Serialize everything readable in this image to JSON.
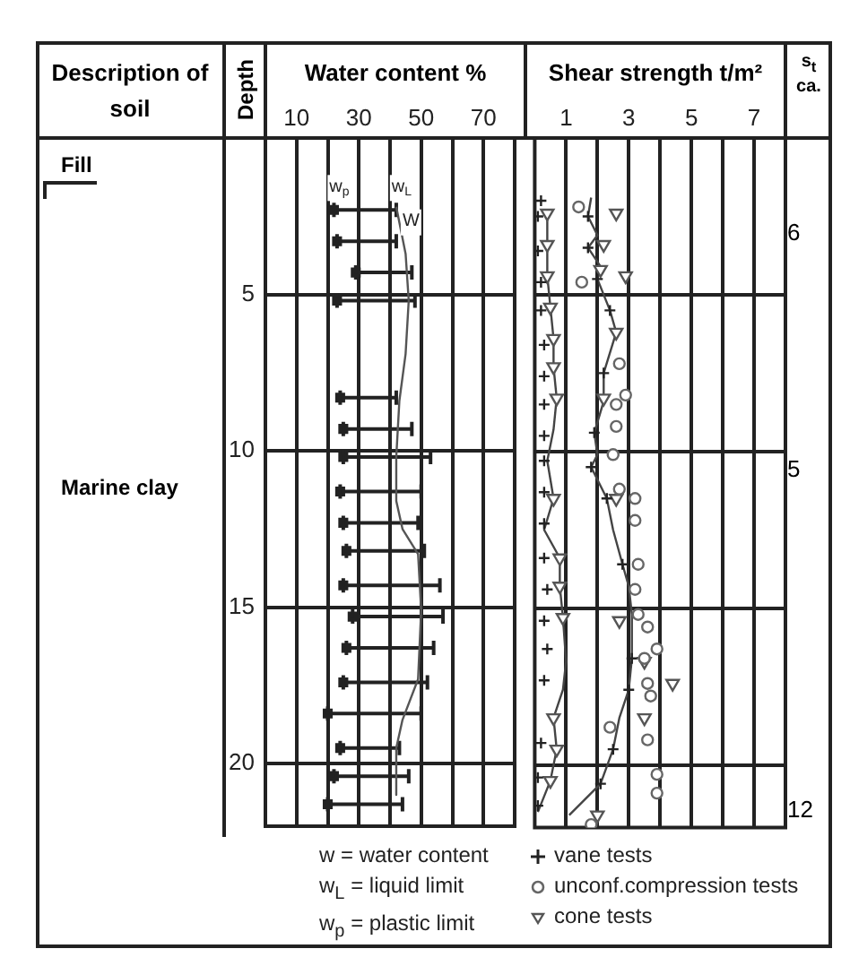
{
  "chart_data": [
    {
      "type": "scatter",
      "xlabel": "Water content %",
      "ylabel": "Depth",
      "xlim": [
        0,
        80
      ],
      "xticks": [
        10,
        {
          "value": 20,
          "label": null
        },
        30,
        {
          "value": 40,
          "label": null
        },
        50,
        {
          "value": 60,
          "label": null
        },
        70
      ],
      "ylim": [
        22,
        0
      ],
      "yticks": [
        5,
        10,
        15,
        20
      ],
      "grid": true,
      "series": [
        {
          "type": "scatter",
          "marker": "square",
          "color": "#222222",
          "x": [
            22,
            23,
            29,
            23,
            24,
            25,
            25,
            24,
            25,
            26,
            25,
            28,
            26,
            25,
            20,
            24,
            22,
            20
          ],
          "values": [
            2.3,
            3.3,
            4.3,
            5.2,
            8.3,
            9.3,
            10.2,
            11.3,
            12.3,
            13.2,
            14.3,
            15.3,
            16.3,
            17.4,
            18.4,
            19.5,
            20.4,
            21.3
          ],
          "xerrors": [
            [
              22,
              42
            ],
            [
              23,
              42
            ],
            [
              29,
              47
            ],
            [
              23,
              48
            ],
            [
              24,
              42
            ],
            [
              25,
              47
            ],
            [
              25,
              53
            ],
            [
              24,
              50
            ],
            [
              25,
              49
            ],
            [
              26,
              51
            ],
            [
              25,
              56
            ],
            [
              28,
              57
            ],
            [
              26,
              54
            ],
            [
              25,
              52
            ],
            [
              20,
              50
            ],
            [
              24,
              43
            ],
            [
              22,
              46
            ],
            [
              20,
              44
            ]
          ]
        },
        {
          "type": "line",
          "marker": "none",
          "color": "#555555",
          "x": [
            42,
            45,
            46,
            45,
            43,
            42,
            42,
            44,
            49,
            50,
            49,
            44,
            42,
            42
          ],
          "values": [
            2.2,
            3.7,
            5.2,
            6.9,
            8.4,
            10.2,
            11.6,
            12.5,
            13.3,
            15.1,
            17.3,
            18.6,
            19.5,
            21
          ]
        }
      ],
      "annotations": [
        "Description of soil",
        "Fill",
        "Marine clay",
        "w = water content",
        "w$_{L}$ = liquid limit",
        "w$_{p}$ = plastic limit",
        {
          "text": "w$_{p}$",
          "x": 22,
          "y": 2.3
        },
        {
          "text": "w$_{L}$",
          "x": 42,
          "y": 2.3
        },
        {
          "text": "W",
          "x": 45,
          "y": 3.4
        }
      ]
    },
    {
      "type": "scatter",
      "xlabel": "Shear strength t/m²",
      "xlim": [
        0,
        8
      ],
      "xticks": [
        1,
        {
          "value": 2,
          "label": null
        },
        3,
        {
          "value": 4,
          "label": null
        },
        5,
        {
          "value": 6,
          "label": null
        },
        7
      ],
      "ylim": [
        22,
        0
      ],
      "yticks": [
        5,
        10,
        15,
        20
      ],
      "grid": true,
      "tick_labels": "x",
      "legend": "bottom",
      "series": [
        {
          "type": "scatter",
          "name": "vane tests",
          "marker": "cross",
          "color": "#222222",
          "x": [
            0.2,
            0.1,
            0.1,
            0.2,
            0.2,
            0.3,
            0.3,
            0.3,
            0.3,
            0.3,
            0.3,
            0.3,
            0.3,
            0.4,
            0.3,
            0.4,
            0.3,
            0.2,
            0.1,
            0.1,
            1.7,
            1.7,
            2.0,
            2.4,
            2.2,
            1.9,
            1.8,
            2.3,
            2.8,
            3.1,
            3.0,
            2.5,
            2.1
          ],
          "values": [
            2.0,
            2.5,
            3.6,
            4.6,
            5.5,
            6.6,
            7.6,
            8.5,
            9.5,
            10.3,
            11.3,
            12.3,
            13.4,
            14.4,
            15.4,
            16.3,
            17.3,
            19.3,
            20.4,
            21.3,
            2.5,
            3.5,
            4.5,
            5.5,
            7.5,
            9.4,
            10.5,
            11.5,
            13.6,
            16.6,
            17.6,
            19.5,
            20.6
          ]
        },
        {
          "type": "scatter",
          "name": "unconf.compression tests",
          "marker": "circle",
          "color": "#666666",
          "x": [
            1.4,
            1.5,
            2.7,
            2.9,
            2.6,
            2.6,
            2.5,
            2.7,
            3.2,
            3.2,
            3.3,
            3.2,
            3.3,
            3.6,
            3.9,
            3.5,
            3.6,
            3.7,
            2.4,
            3.6,
            3.9,
            3.9,
            1.8
          ],
          "values": [
            2.2,
            4.6,
            7.2,
            8.2,
            8.5,
            9.2,
            10.1,
            11.2,
            11.5,
            12.2,
            13.6,
            14.4,
            15.2,
            15.6,
            16.3,
            16.6,
            17.4,
            17.8,
            18.8,
            19.2,
            20.3,
            20.9,
            21.9
          ]
        },
        {
          "type": "scatter",
          "name": "cone tests",
          "marker": "triangle",
          "color": "#555555",
          "x": [
            0.4,
            0.4,
            0.4,
            0.5,
            0.6,
            0.6,
            0.7,
            0.6,
            0.8,
            0.8,
            0.9,
            0.6,
            0.7,
            0.5,
            2.6,
            2.2,
            2.1,
            2.9,
            2.6,
            2.2,
            2.6,
            2.7,
            3.5,
            4.4,
            3.5,
            2.0
          ],
          "values": [
            2.4,
            3.4,
            4.4,
            5.4,
            6.4,
            7.3,
            8.3,
            11.5,
            13.4,
            14.3,
            15.3,
            18.5,
            19.5,
            20.5,
            2.4,
            3.4,
            4.2,
            4.4,
            6.2,
            8.3,
            11.5,
            15.4,
            16.7,
            17.4,
            18.5,
            21.6
          ]
        },
        {
          "type": "line",
          "marker": "none",
          "color": "#444444",
          "x": [
            0.4,
            0.4,
            0.5,
            0.6,
            0.6,
            0.7,
            0.6,
            0.4,
            0.6,
            0.3,
            0.8,
            0.8,
            0.9,
            1.0,
            0.9,
            0.6,
            0.7,
            0.5,
            0.1
          ],
          "values": [
            2.4,
            4.4,
            5.4,
            6.4,
            7.3,
            8.3,
            9.3,
            10.3,
            11.5,
            12.5,
            13.4,
            14.3,
            15.3,
            16.7,
            17.6,
            18.5,
            19.5,
            20.5,
            21.5
          ]
        },
        {
          "type": "line",
          "marker": "none",
          "color": "#444444",
          "x": [
            1.8,
            1.7,
            2.0,
            1.7,
            2.1,
            2.0,
            2.4,
            2.6,
            2.2,
            2.2,
            1.9,
            2.0,
            1.8,
            2.3,
            2.5,
            2.8,
            3.0,
            3.1,
            3.1,
            3.0,
            2.7,
            2.5,
            2.1,
            1.1
          ],
          "values": [
            1.9,
            2.5,
            3.1,
            3.5,
            4.1,
            4.5,
            5.5,
            6.2,
            7.5,
            8.4,
            9.4,
            10.1,
            10.5,
            11.5,
            12.5,
            13.6,
            14.3,
            15.2,
            16.6,
            17.6,
            18.5,
            19.5,
            20.6,
            21.6
          ]
        }
      ],
      "annotations": [
        "s$_{t}$ ca.",
        "6",
        "5",
        "12"
      ]
    }
  ]
}
